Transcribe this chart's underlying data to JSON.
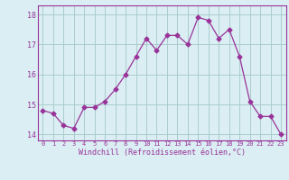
{
  "hours": [
    0,
    1,
    2,
    3,
    4,
    5,
    6,
    7,
    8,
    9,
    10,
    11,
    12,
    13,
    14,
    15,
    16,
    17,
    18,
    19,
    20,
    21,
    22,
    23
  ],
  "values": [
    14.8,
    14.7,
    14.3,
    14.2,
    14.9,
    14.9,
    15.1,
    15.5,
    16.0,
    16.6,
    17.2,
    16.8,
    17.3,
    17.3,
    17.0,
    17.9,
    17.8,
    17.2,
    17.5,
    16.6,
    15.1,
    14.6,
    14.6,
    14.0
  ],
  "line_color": "#993399",
  "marker": "D",
  "marker_size": 2.5,
  "bg_color": "#daeef3",
  "grid_color": "#aacccc",
  "xlabel": "Windchill (Refroidissement éolien,°C)",
  "xlabel_color": "#993399",
  "tick_color": "#993399",
  "spine_color": "#993399",
  "ylim": [
    13.8,
    18.3
  ],
  "yticks": [
    14,
    15,
    16,
    17,
    18
  ],
  "xlim": [
    -0.5,
    23.5
  ],
  "figsize": [
    3.2,
    2.0
  ],
  "dpi": 100
}
